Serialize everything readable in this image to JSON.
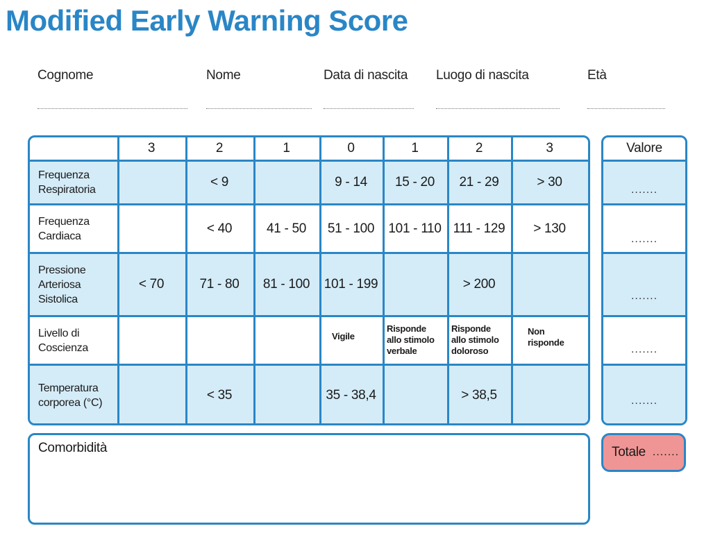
{
  "title": "Modified Early Warning Score",
  "fields": [
    {
      "label": "Cognome"
    },
    {
      "label": "Nome"
    },
    {
      "label": "Data di nascita"
    },
    {
      "label": "Luogo di nascita"
    },
    {
      "label": "Età"
    }
  ],
  "table": {
    "header_scores": [
      "3",
      "2",
      "1",
      "0",
      "1",
      "2",
      "3"
    ],
    "rows": [
      {
        "label": "Frequenza\nRespiratoria",
        "cells": [
          "",
          "< 9",
          "",
          "9 - 14",
          "15 - 20",
          "21 - 29",
          "> 30"
        ]
      },
      {
        "label": "Frequenza\nCardiaca",
        "cells": [
          "",
          "< 40",
          "41 - 50",
          "51 - 100",
          "101 - 110",
          "111 - 129",
          "> 130"
        ]
      },
      {
        "label": "Pressione\nArteriosa\nSistolica",
        "cells": [
          "< 70",
          "71 - 80",
          "81 - 100",
          "101 - 199",
          "",
          "> 200",
          ""
        ]
      },
      {
        "label": "Livello di\nCoscienza",
        "cells": [
          "",
          "",
          "",
          "Vigile",
          "Risponde\nallo stimolo\nverbale",
          "Risponde\nallo stimolo\ndoloroso",
          "Non\nrisponde"
        ]
      },
      {
        "label": "Temperatura\ncorporea (°C)",
        "cells": [
          "",
          "< 35",
          "",
          "35 - 38,4",
          "",
          "> 38,5",
          ""
        ]
      }
    ]
  },
  "valore": {
    "header": "Valore",
    "placeholders": [
      ".......",
      ".......",
      ".......",
      ".......",
      "......."
    ]
  },
  "comorbidita": {
    "label": "Comorbidità"
  },
  "totale": {
    "label": "Totale",
    "placeholder": "......."
  },
  "colors": {
    "accent": "#2a86c6",
    "cell_fill": "#d4ecf8",
    "totale_fill": "#f09595"
  }
}
